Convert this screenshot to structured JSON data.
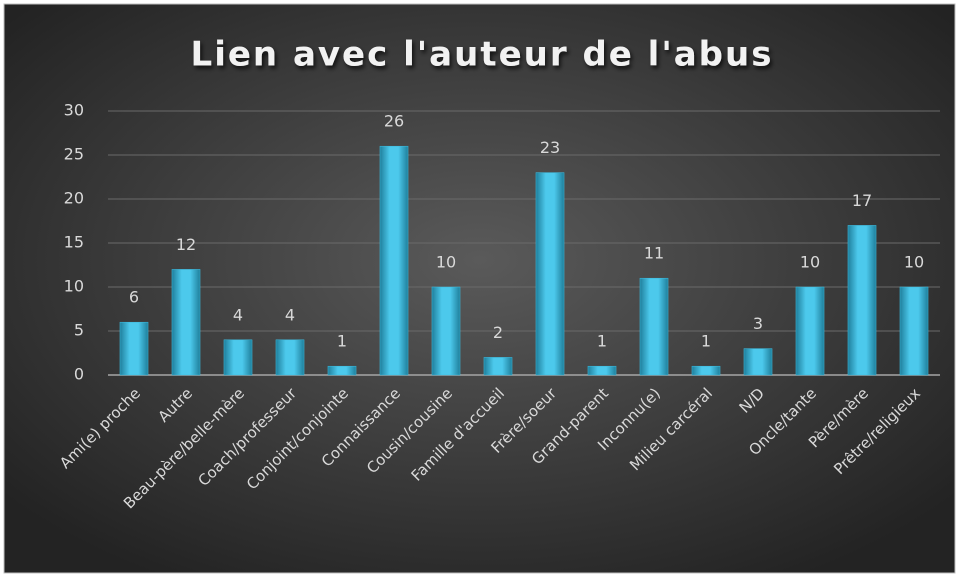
{
  "chart_data": {
    "type": "bar",
    "title": "Lien avec l'auteur de l'abus",
    "categories": [
      "Ami(e) proche",
      "Autre",
      "Beau-père/belle-mère",
      "Coach/professeur",
      "Conjoint/conjointe",
      "Connaissance",
      "Cousin/cousine",
      "Famille d'accueil",
      "Frère/soeur",
      "Grand-parent",
      "Inconnu(e)",
      "Milieu carcéral",
      "N/D",
      "Oncle/tante",
      "Père/mère",
      "Prêtre/religieux"
    ],
    "values": [
      6,
      12,
      4,
      4,
      1,
      26,
      10,
      2,
      23,
      1,
      11,
      1,
      3,
      10,
      17,
      10
    ],
    "color": "#3fbde0",
    "ylim": [
      0,
      30
    ],
    "yticks": [
      0,
      5,
      10,
      15,
      20,
      25,
      30
    ],
    "grid": true
  }
}
